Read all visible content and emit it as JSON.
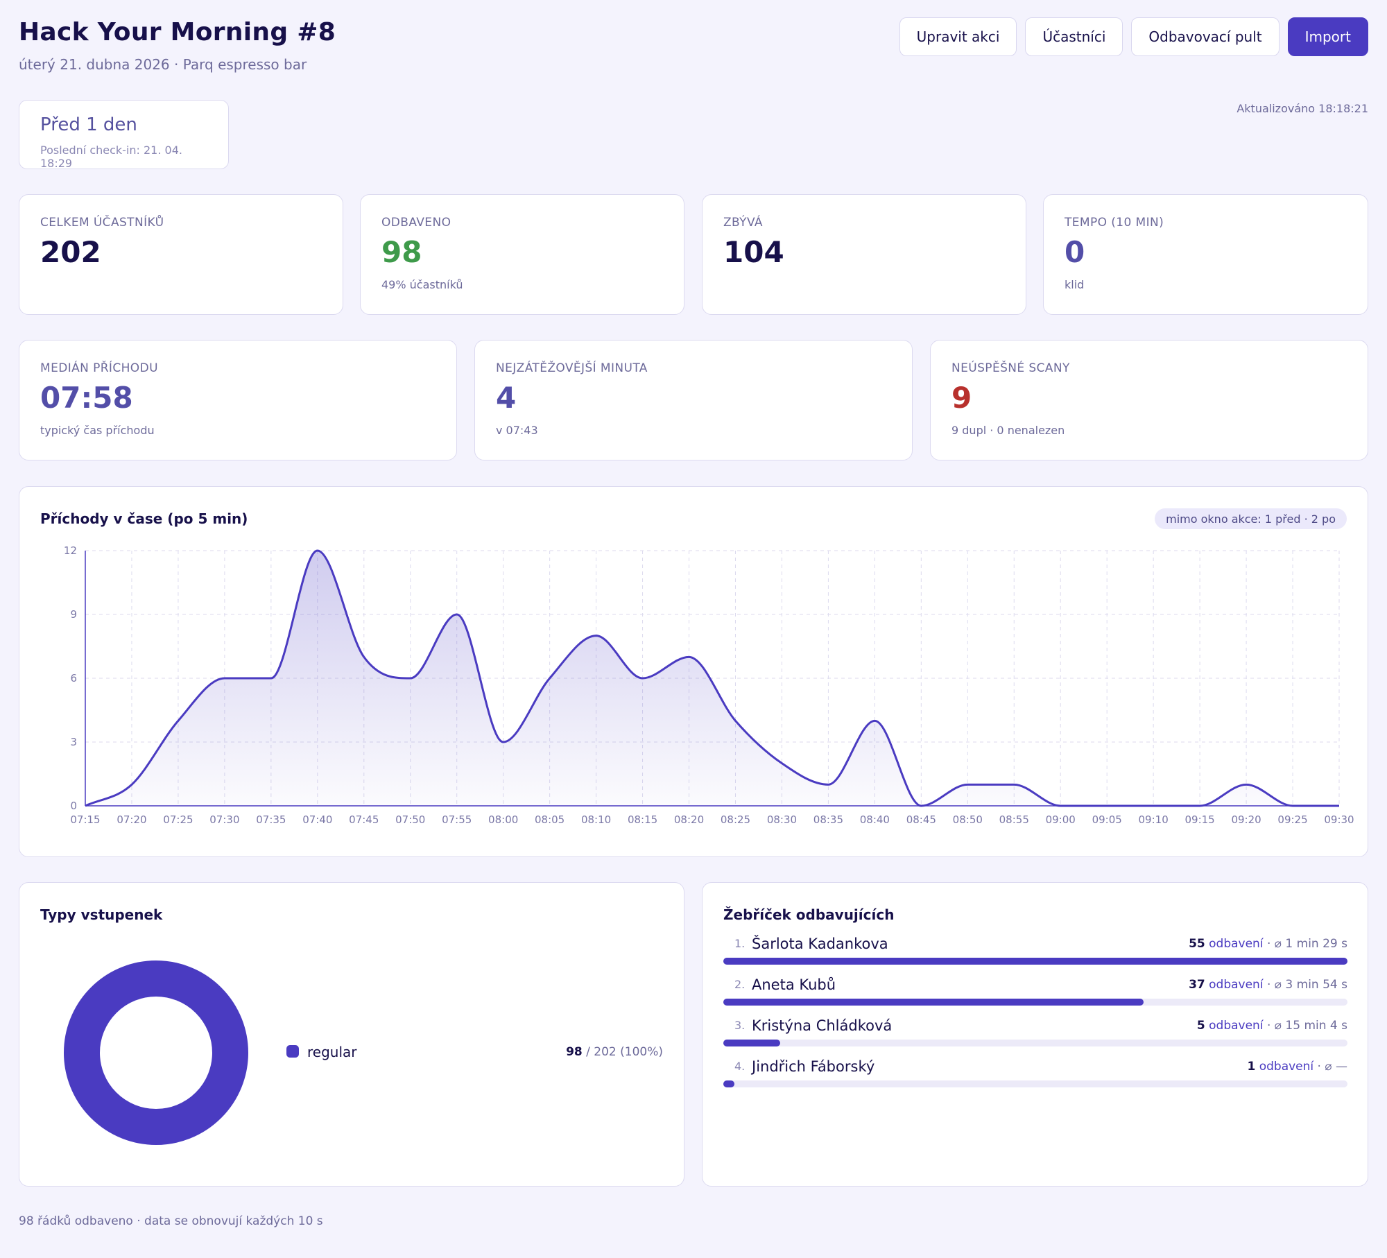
{
  "header": {
    "title": "Hack Your Morning #8",
    "subtitle": "úterý 21. dubna 2026 · Parq espresso bar",
    "buttons": [
      "Upravit akci",
      "Účastníci",
      "Odbavovací pult",
      "Import"
    ]
  },
  "since": {
    "main": "Před 1 den",
    "sub": "Poslední check-in: 21. 04. 18:29"
  },
  "updated": "Aktualizováno 18:18:21",
  "stats_top": [
    {
      "label": "CELKEM ÚČASTNÍKŮ",
      "value": "202",
      "sub": ""
    },
    {
      "label": "ODBAVENO",
      "value": "98",
      "sub": "49% účastníků"
    },
    {
      "label": "ZBÝVÁ",
      "value": "104",
      "sub": ""
    },
    {
      "label": "TEMPO (10 MIN)",
      "value": "0",
      "sub": "klid"
    }
  ],
  "stats_mid": [
    {
      "label": "MEDIÁN PŘÍCHODU",
      "value": "07:58",
      "sub": "typický čas příchodu"
    },
    {
      "label": "NEJZÁTĚŽOVĚJŠÍ MINUTA",
      "value": "4",
      "sub": "v 07:43"
    },
    {
      "label": "NEÚSPĚŠNÉ SCANY",
      "value": "9",
      "sub": "9 dupl · 0 nenalezen"
    }
  ],
  "chart_title": "Příchody v čase (po 5 min)",
  "chart_badge": "mimo okno akce: 1 před · 2 po",
  "chart_data": {
    "type": "area",
    "title": "Příchody v čase (po 5 min)",
    "x": [
      "07:15",
      "07:20",
      "07:25",
      "07:30",
      "07:35",
      "07:40",
      "07:45",
      "07:50",
      "07:55",
      "08:00",
      "08:05",
      "08:10",
      "08:15",
      "08:20",
      "08:25",
      "08:30",
      "08:35",
      "08:40",
      "08:45",
      "08:50",
      "08:55",
      "09:00",
      "09:05",
      "09:10",
      "09:15",
      "09:20",
      "09:25",
      "09:30"
    ],
    "values": [
      0,
      1,
      4,
      6,
      6,
      12,
      7,
      6,
      9,
      3,
      6,
      8,
      6,
      7,
      4,
      2,
      1,
      4,
      0,
      1,
      1,
      0,
      0,
      0,
      0,
      1,
      0,
      0
    ],
    "y_ticks": [
      "0",
      "3",
      "6",
      "9",
      "12"
    ],
    "ylim": [
      0,
      12
    ],
    "grid": true,
    "colors": {
      "line": "#4a3bc1",
      "fill": "#4a3bc1"
    }
  },
  "types": {
    "title": "Typy vstupenek",
    "label": "regular",
    "count": "98",
    "total": "/ 202 (100%)",
    "share": 1.0,
    "color": "#4a3bc1"
  },
  "ranking": {
    "title": "Žebříček odbavujících",
    "unit": "odbavení",
    "items": [
      {
        "num": "1.",
        "name": "Šarlota Kadankova",
        "count": "55",
        "avg": "· ⌀ 1 min 29 s",
        "share": 1.0
      },
      {
        "num": "2.",
        "name": "Aneta Kubů",
        "count": "37",
        "avg": "· ⌀ 3 min 54 s",
        "share": 0.673
      },
      {
        "num": "3.",
        "name": "Kristýna Chládková",
        "count": "5",
        "avg": "· ⌀ 15 min 4 s",
        "share": 0.091
      },
      {
        "num": "4.",
        "name": "Jindřich Fáborský",
        "count": "1",
        "avg": "· ⌀ —",
        "share": 0.018
      }
    ]
  },
  "footer": "98 řádků odbaveno · data se obnovují každých 10 s"
}
